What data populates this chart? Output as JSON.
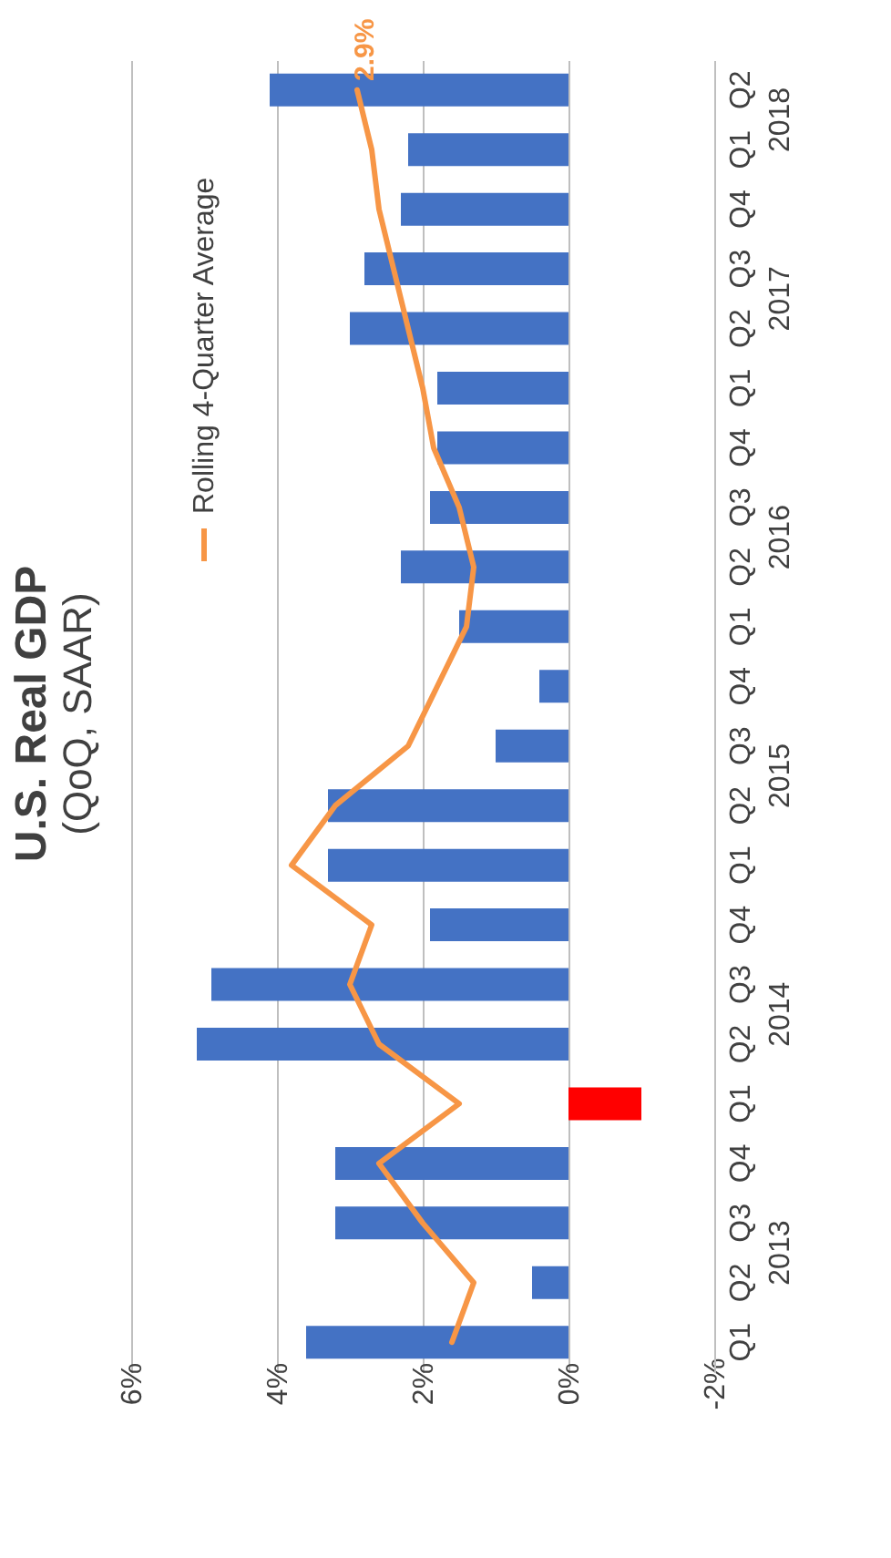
{
  "chart_data": {
    "type": "bar",
    "orientation": "horizontal",
    "title": "U.S. Real GDP",
    "subtitle": "(QoQ, SAAR)",
    "categories": [
      "Q2",
      "Q1",
      "Q4",
      "Q3",
      "Q2",
      "Q1",
      "Q4",
      "Q3",
      "Q2",
      "Q1",
      "Q4",
      "Q3",
      "Q2",
      "Q1",
      "Q4",
      "Q3",
      "Q2",
      "Q1",
      "Q4",
      "Q3",
      "Q2",
      "Q1"
    ],
    "series": [
      {
        "type": "bar",
        "values": [
          4.1,
          2.2,
          2.3,
          2.8,
          3.0,
          1.8,
          1.8,
          1.9,
          2.3,
          1.5,
          0.4,
          1.0,
          3.3,
          3.3,
          1.9,
          4.9,
          5.1,
          -1.0,
          3.2,
          3.2,
          0.5,
          3.6
        ],
        "colors": [
          "#4472c4",
          "#4472c4",
          "#4472c4",
          "#4472c4",
          "#4472c4",
          "#4472c4",
          "#4472c4",
          "#4472c4",
          "#4472c4",
          "#4472c4",
          "#4472c4",
          "#4472c4",
          "#4472c4",
          "#4472c4",
          "#4472c4",
          "#4472c4",
          "#4472c4",
          "#ff0000",
          "#4472c4",
          "#4472c4",
          "#4472c4",
          "#4472c4"
        ]
      },
      {
        "type": "line",
        "name": "Rolling 4-Quarter Average",
        "color": "#f79646",
        "values": [
          2.9,
          2.7,
          2.6,
          2.4,
          2.2,
          2.0,
          1.85,
          1.5,
          1.3,
          1.4,
          1.8,
          2.2,
          3.2,
          3.8,
          2.7,
          3.0,
          2.6,
          1.5,
          2.6,
          2.0,
          1.3,
          1.6
        ],
        "value_labels": [
          "2.9%",
          null,
          null,
          null,
          null,
          null,
          null,
          null,
          null,
          null,
          null,
          null,
          null,
          null,
          null,
          null,
          null,
          null,
          null,
          null,
          null,
          null
        ]
      }
    ],
    "annotations": [
      "2018",
      "2017",
      "2016",
      "2015",
      "2014",
      "2013"
    ],
    "xlim": [
      6,
      -2
    ],
    "xticks": [
      {
        "value": 6,
        "label": "6%"
      },
      {
        "value": 4,
        "label": "4%"
      },
      {
        "value": 2,
        "label": "2%"
      },
      {
        "value": 0,
        "label": "0%"
      },
      {
        "value": -2,
        "label": "-2%"
      }
    ],
    "grid": "x",
    "legend": "top left"
  }
}
